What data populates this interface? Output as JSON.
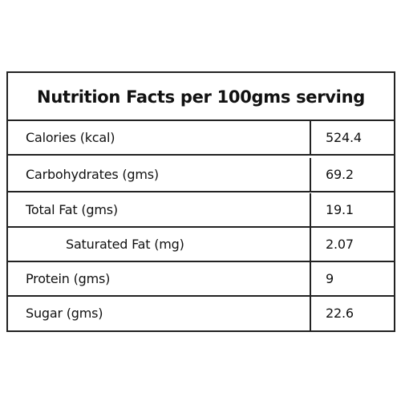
{
  "header": {
    "title": "Nutrition Facts per 100gms serving"
  },
  "table": {
    "rows": [
      [
        "Calories (kcal)",
        "524.4"
      ],
      [
        "Carbohydrates (gms)",
        "69.2"
      ],
      [
        "Total Fat (gms)",
        "19.1"
      ],
      [
        "Saturated Fat (mg)",
        "2.07"
      ],
      [
        "Protein (gms)",
        "9"
      ],
      [
        "Sugar (gms)",
        "22.6"
      ]
    ]
  }
}
